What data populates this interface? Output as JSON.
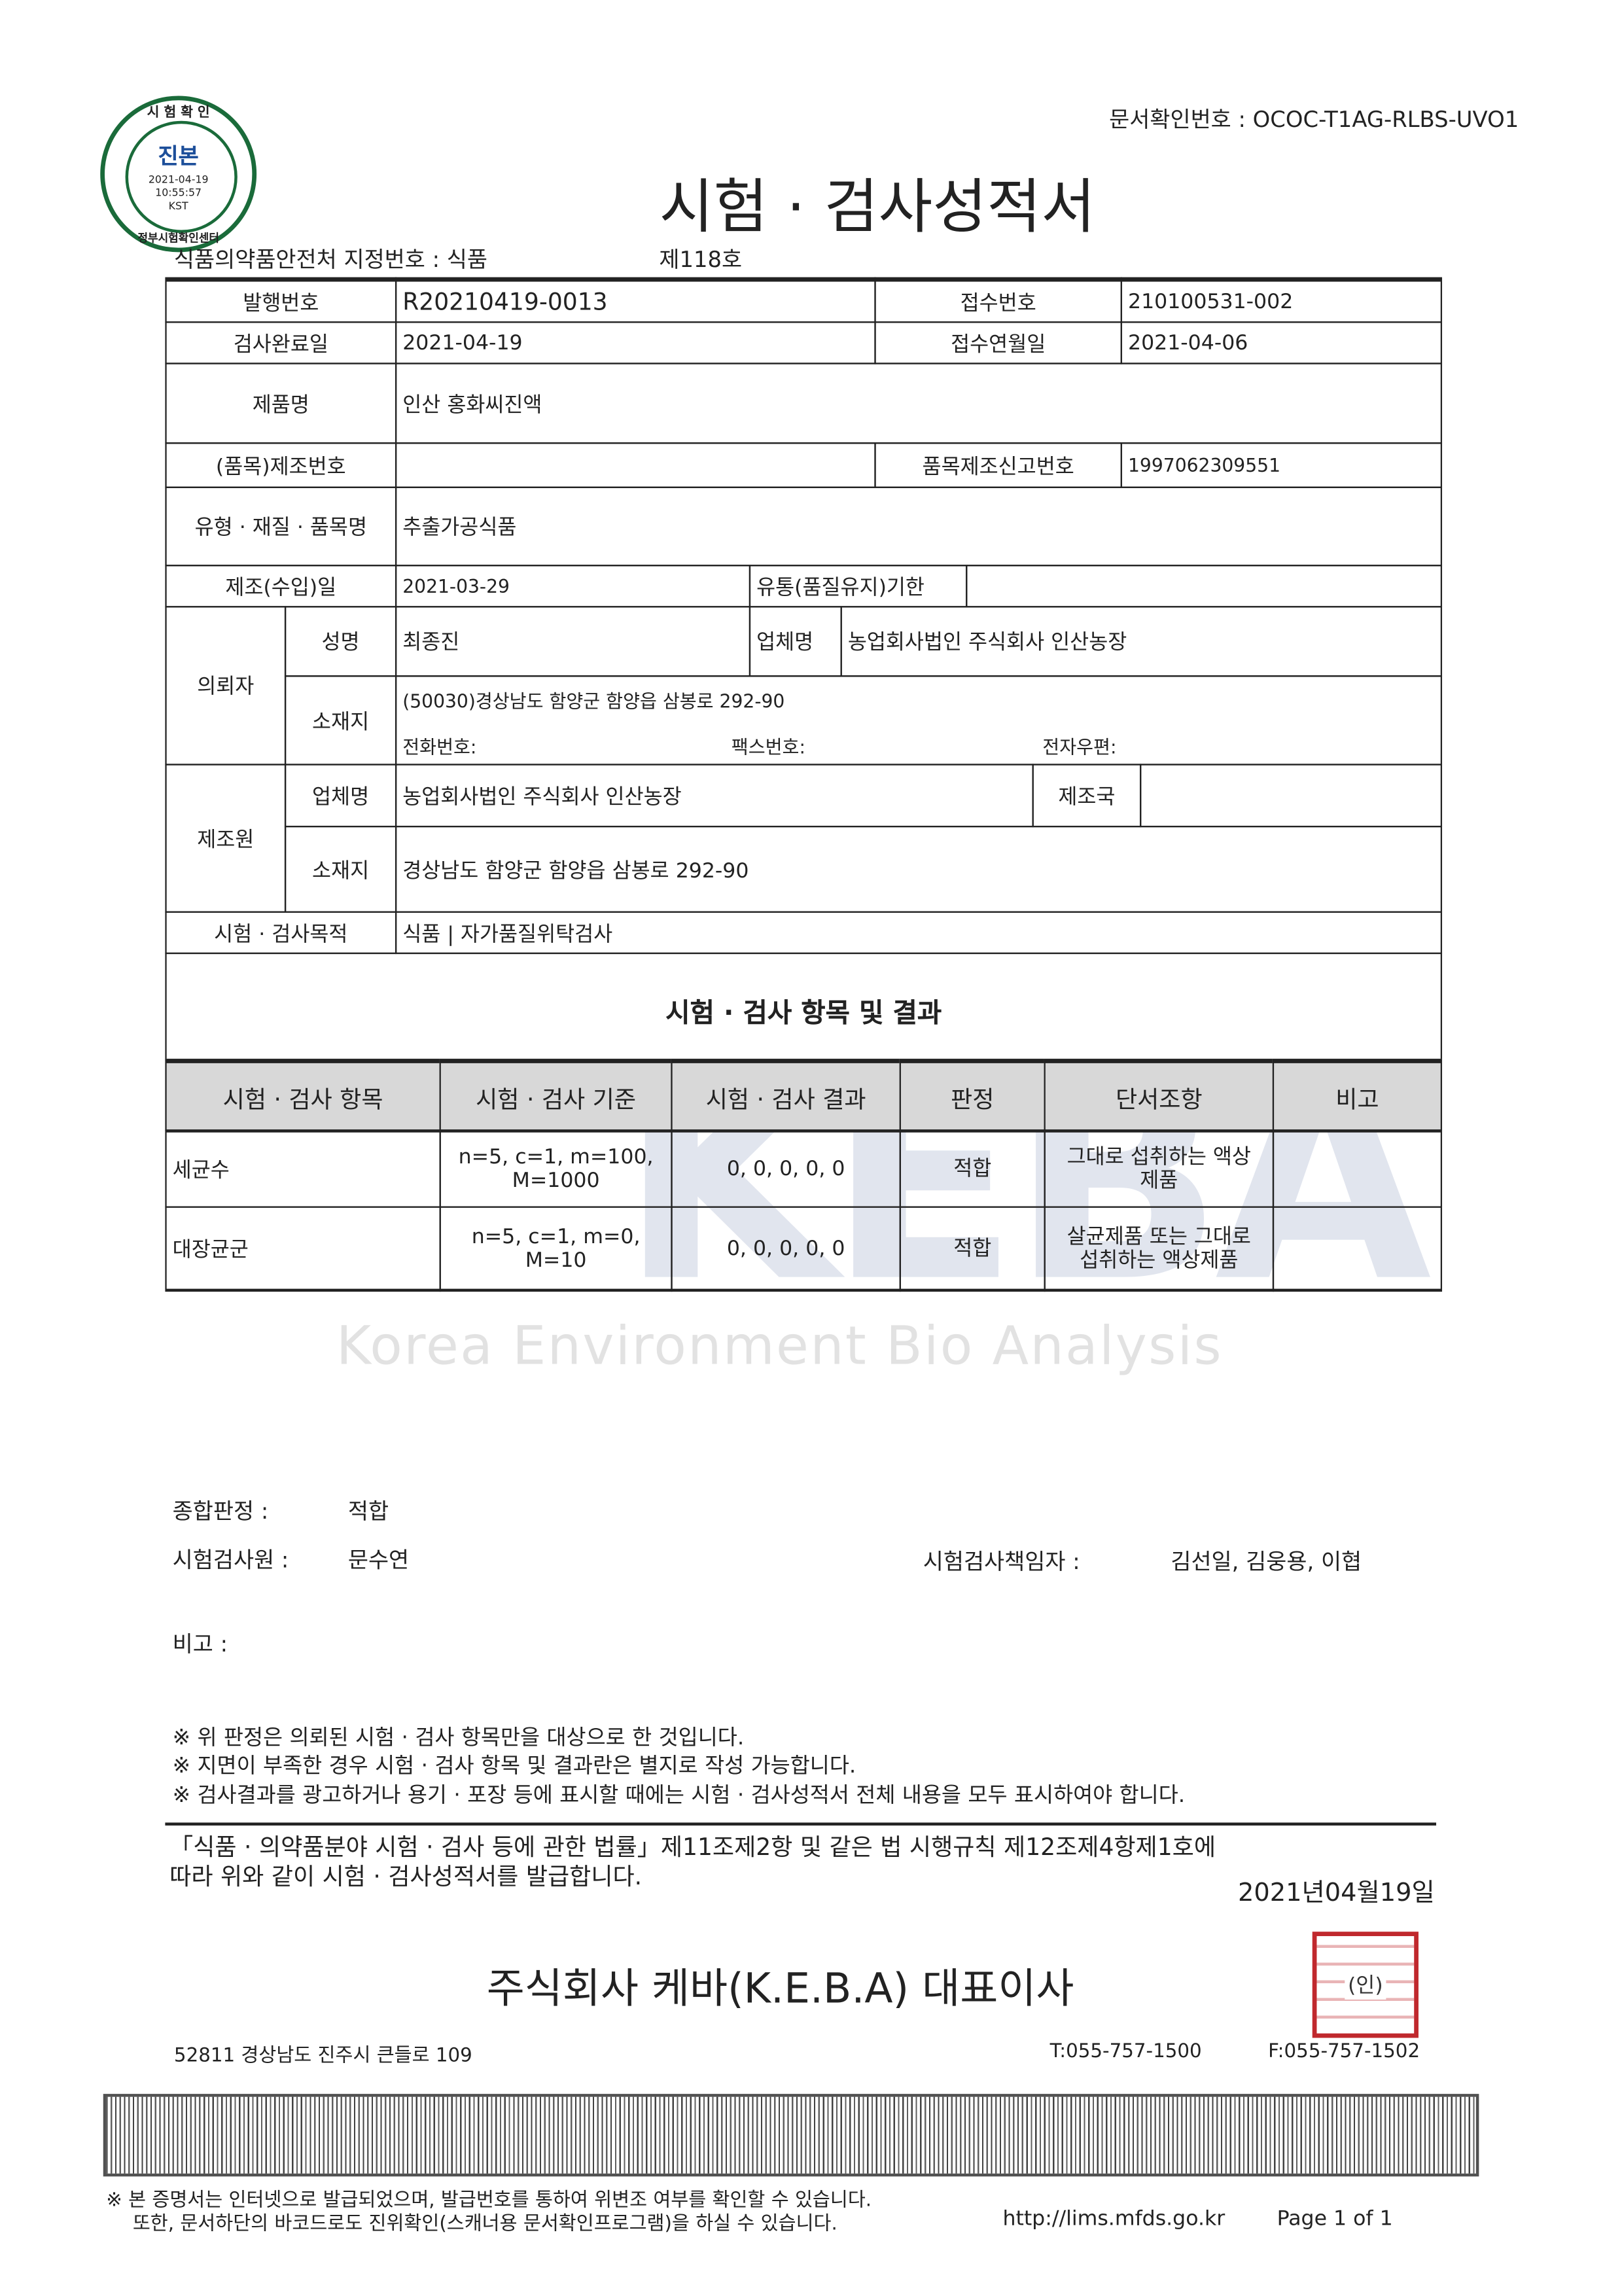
{
  "doc_check_no": "문서확인번호 : OCOC-T1AG-RLBS-UVO1",
  "stamp": {
    "top": "시 험 확 인",
    "main": "진본",
    "date": "2021-04-19",
    "time": "10:55:57",
    "tz": "KST",
    "bottom": "정부시험확인센터",
    "color": "#1a6b3a"
  },
  "title": "시험 · 검사성적서",
  "designation": "식품의약품안전처 지정번호 : 식품",
  "designation_no": "제118호",
  "fields": {
    "issue_no_label": "발행번호",
    "issue_no": "R20210419-0013",
    "receipt_no_label": "접수번호",
    "receipt_no": "210100531-002",
    "done_label": "검사완료일",
    "done": "2021-04-19",
    "receipt_date_label": "접수연월일",
    "receipt_date": "2021-04-06",
    "product_label": "제품명",
    "product": "인산 홍화씨진액",
    "lot_label": "(품목)제조번호",
    "lot": "",
    "report_no_label": "품목제조신고번호",
    "report_no": "1997062309551",
    "type_label": "유형 · 재질 · 품목명",
    "type": "추출가공식품",
    "mfg_date_label": "제조(수입)일",
    "mfg_date": "2021-03-29",
    "expiry_label": "유통(품질유지)기한",
    "expiry": "",
    "client_label": "의뢰자",
    "name_label": "성명",
    "name": "최종진",
    "company_label": "업체명",
    "company": "농업회사법인 주식회사 인산농장",
    "addr_label": "소재지",
    "addr": "(50030)경상남도 함양군 함양읍 삼봉로 292-90",
    "tel": "전화번호:",
    "fax": "팩스번호:",
    "email": "전자우편:",
    "maker_label": "제조원",
    "maker_company_label": "업체명",
    "maker_company": "농업회사법인 주식회사 인산농장",
    "country_label": "제조국",
    "country": "",
    "maker_addr_label": "소재지",
    "maker_addr": "경상남도 함양군 함양읍 삼봉로 292-90",
    "purpose_label": "시험 · 검사목적",
    "purpose": "식품 | 자가품질위탁검사"
  },
  "results": {
    "section_title": "시험 · 검사 항목 및 결과",
    "headers": [
      "시험 · 검사 항목",
      "시험 · 검사 기준",
      "시험 · 검사 결과",
      "판정",
      "단서조항",
      "비고"
    ],
    "rows": [
      [
        "세균수",
        "n=5, c=1, m=100, M=1000",
        "0, 0, 0, 0, 0",
        "적합",
        "그대로 섭취하는 액상제품",
        ""
      ],
      [
        "대장균군",
        "n=5, c=1, m=0, M=10",
        "0, 0, 0, 0, 0",
        "적합",
        "살균제품 또는 그대로 섭취하는 액상제품",
        ""
      ]
    ]
  },
  "watermark": "Korea Environment Bio Analysis",
  "watermark_logo": "KEBA",
  "summary": {
    "verdict_label": "종합판정 :",
    "verdict": "적합",
    "tester_label": "시험검사원 :",
    "tester": "문수연",
    "resp_label": "시험검사책임자 :",
    "resp": "김선일, 김웅용, 이협",
    "remark_label": "비고 :"
  },
  "notes": [
    "※ 위 판정은 의뢰된 시험 · 검사 항목만을 대상으로 한 것입니다.",
    "※ 지면이 부족한 경우 시험 · 검사 항목 및 결과란은 별지로 작성 가능합니다.",
    "※ 검사결과를 광고하거나 용기 · 포장 등에 표시할 때에는 시험 · 검사성적서 전체 내용을 모두 표시하여야 합니다."
  ],
  "law": [
    "「식품 · 의약품분야 시험 · 검사 등에 관한 법률」제11조제2항 및 같은 법 시행규칙 제12조제4항제1호에",
    "따라 위와 같이 시험 · 검사성적서를 발급합니다."
  ],
  "issue_date": "2021년04월19일",
  "issuer": "주식회사 케바(K.E.B.A) 대표이사",
  "seal": {
    "text": "(인)",
    "color": "#c0282d"
  },
  "address": "52811 경상남도 진주시  큰들로 109",
  "tel": "T:055-757-1500",
  "fax": "F:055-757-1502",
  "footer": [
    "※ 본 증명서는 인터넷으로 발급되었으며, 발급번호를 통하여 위변조 여부를 확인할 수 있습니다.",
    "또한, 문서하단의 바코드로도 진위확인(스캐너용 문서확인프로그램)을 하실 수 있습니다."
  ],
  "url": "http://lims.mfds.go.kr",
  "page": "Page 1 of 1"
}
